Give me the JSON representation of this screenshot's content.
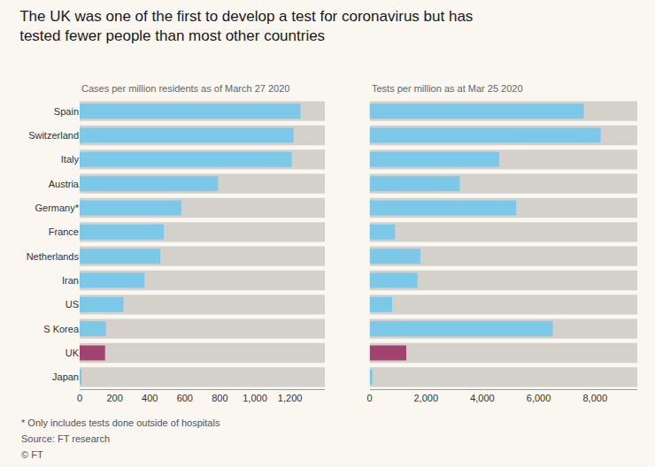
{
  "title": "The UK was one of the first to develop a test for coronavirus but has\ntested fewer people than most other countries",
  "annotations": [
    "* Only includes tests done outside of hospitals",
    "Source: FT research",
    "© FT"
  ],
  "chart_data": [
    {
      "type": "bar",
      "orientation": "horizontal",
      "subtitle": "Cases per million residents as of March 27 2020",
      "categories": [
        "Spain",
        "Switzerland",
        "Italy",
        "Austria",
        "Germany*",
        "France",
        "Netherlands",
        "Iran",
        "US",
        "S Korea",
        "UK",
        "Japan"
      ],
      "values": [
        1260,
        1220,
        1210,
        790,
        580,
        480,
        460,
        370,
        250,
        150,
        145,
        10
      ],
      "colors": [
        "#7CC8E8",
        "#7CC8E8",
        "#7CC8E8",
        "#7CC8E8",
        "#7CC8E8",
        "#7CC8E8",
        "#7CC8E8",
        "#7CC8E8",
        "#7CC8E8",
        "#7CC8E8",
        "#A0436E",
        "#7CC8E8"
      ],
      "xlim": [
        0,
        1400
      ],
      "xticks": [
        0,
        200,
        400,
        600,
        800,
        {
          "value": 1000,
          "label": "1,000"
        },
        {
          "value": 1200,
          "label": "1,200"
        }
      ],
      "grid": false
    },
    {
      "type": "bar",
      "orientation": "horizontal",
      "subtitle": "Tests per million as at Mar 25 2020",
      "categories": [
        "Spain",
        "Switzerland",
        "Italy",
        "Austria",
        "Germany*",
        "France",
        "Netherlands",
        "Iran",
        "US",
        "S Korea",
        "UK",
        "Japan"
      ],
      "values": [
        7600,
        8200,
        4600,
        3200,
        5200,
        900,
        1800,
        1700,
        800,
        6500,
        1300,
        100
      ],
      "colors": [
        "#7CC8E8",
        "#7CC8E8",
        "#7CC8E8",
        "#7CC8E8",
        "#7CC8E8",
        "#7CC8E8",
        "#7CC8E8",
        "#7CC8E8",
        "#7CC8E8",
        "#7CC8E8",
        "#A0436E",
        "#7CC8E8"
      ],
      "xlim": [
        0,
        9500
      ],
      "xticks": [
        0,
        {
          "value": 2000,
          "label": "2,000"
        },
        {
          "value": 4000,
          "label": "4,000"
        },
        {
          "value": 6000,
          "label": "6,000"
        },
        {
          "value": 8000,
          "label": "8,000"
        }
      ],
      "grid": false,
      "tick_labels": "x"
    }
  ]
}
